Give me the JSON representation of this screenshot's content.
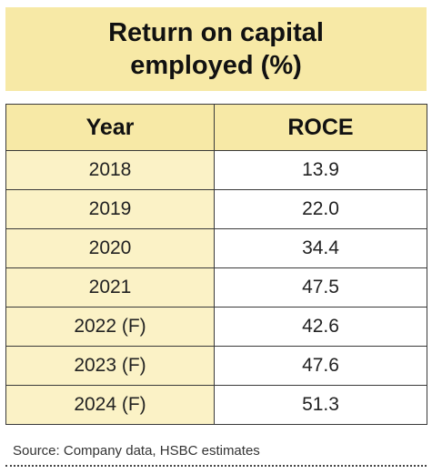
{
  "title": {
    "line1": "Return on capital",
    "line2": "employed (%)"
  },
  "chart_data": {
    "type": "table",
    "columns": [
      "Year",
      "ROCE"
    ],
    "rows": [
      [
        "2018",
        "13.9"
      ],
      [
        "2019",
        "22.0"
      ],
      [
        "2020",
        "34.4"
      ],
      [
        "2021",
        "47.5"
      ],
      [
        "2022 (F)",
        "42.6"
      ],
      [
        "2023 (F)",
        "47.6"
      ],
      [
        "2024 (F)",
        "51.3"
      ]
    ]
  },
  "source": "Source: Company data, HSBC estimates",
  "colors": {
    "header_fill": "#f7e9a6",
    "year_cell_fill": "#fbf2c6"
  }
}
